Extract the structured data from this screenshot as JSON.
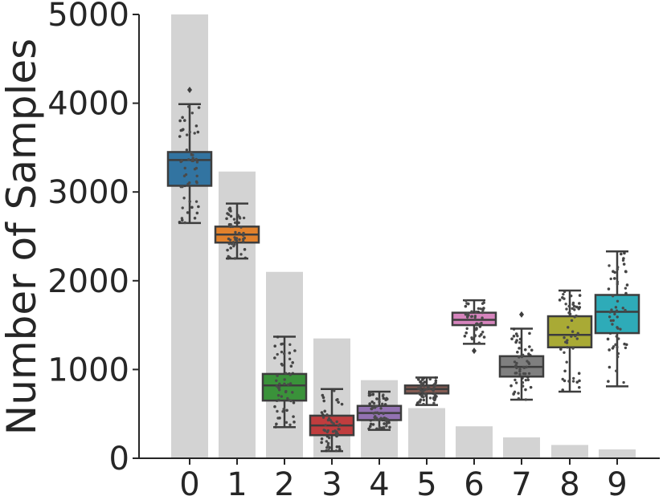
{
  "chart_data": {
    "type": "bar",
    "overlay": "box-and-swarm",
    "ylabel": "Number of Samples",
    "xlabel": "",
    "ylim": [
      0,
      5000
    ],
    "yticks": [
      0,
      1000,
      2000,
      3000,
      4000,
      5000
    ],
    "categories": [
      "0",
      "1",
      "2",
      "3",
      "4",
      "5",
      "6",
      "7",
      "8",
      "9"
    ],
    "bar_values": [
      5000,
      3230,
      2100,
      1350,
      880,
      565,
      360,
      235,
      150,
      100
    ],
    "bar_color": "#d3d3d3",
    "boxes": [
      {
        "category": "0",
        "whisker_low": 2650,
        "q1": 3070,
        "median": 3360,
        "q3": 3450,
        "whisker_high": 3990,
        "outliers": [
          4150
        ],
        "color": "#3274a1"
      },
      {
        "category": "1",
        "whisker_low": 2250,
        "q1": 2430,
        "median": 2520,
        "q3": 2610,
        "whisker_high": 2870,
        "outliers": [],
        "color": "#e1812c"
      },
      {
        "category": "2",
        "whisker_low": 350,
        "q1": 650,
        "median": 820,
        "q3": 950,
        "whisker_high": 1370,
        "outliers": [],
        "color": "#3a923a"
      },
      {
        "category": "3",
        "whisker_low": 80,
        "q1": 260,
        "median": 370,
        "q3": 480,
        "whisker_high": 780,
        "outliers": [],
        "color": "#c03d3e"
      },
      {
        "category": "4",
        "whisker_low": 320,
        "q1": 430,
        "median": 510,
        "q3": 590,
        "whisker_high": 750,
        "outliers": [],
        "color": "#9372b2"
      },
      {
        "category": "5",
        "whisker_low": 600,
        "q1": 730,
        "median": 780,
        "q3": 820,
        "whisker_high": 910,
        "outliers": [],
        "color": "#845b53"
      },
      {
        "category": "6",
        "whisker_low": 1290,
        "q1": 1500,
        "median": 1560,
        "q3": 1640,
        "whisker_high": 1780,
        "outliers": [
          1210
        ],
        "color": "#d684bd"
      },
      {
        "category": "7",
        "whisker_low": 660,
        "q1": 920,
        "median": 1030,
        "q3": 1150,
        "whisker_high": 1460,
        "outliers": [
          1620
        ],
        "color": "#7f7f7f"
      },
      {
        "category": "8",
        "whisker_low": 750,
        "q1": 1250,
        "median": 1390,
        "q3": 1600,
        "whisker_high": 1890,
        "outliers": [],
        "color": "#a9aa35"
      },
      {
        "category": "9",
        "whisker_low": 810,
        "q1": 1410,
        "median": 1650,
        "q3": 1840,
        "whisker_high": 2330,
        "outliers": [],
        "color": "#2eabb8"
      }
    ],
    "grid": false,
    "legend": "none"
  }
}
